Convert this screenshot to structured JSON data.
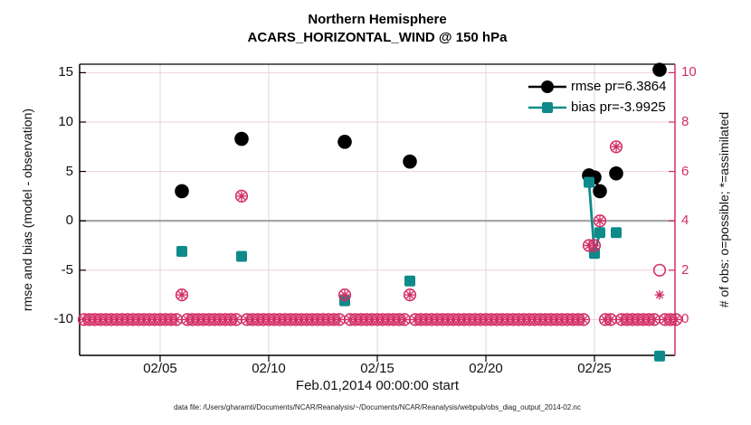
{
  "figure": {
    "title_line1": "Northern Hemisphere",
    "title_line2": "ACARS_HORIZONTAL_WIND @ 150 hPa",
    "footer": "data file: /Users/gharamti/Documents/NCAR/Reanalysis/~/Documents/NCAR/Reanalysis/webpub/obs_diag_output_2014-02.nc"
  },
  "legend": [
    {
      "label": "rmse pr=6.3864",
      "series": "rmse"
    },
    {
      "label": "bias pr=-3.9925",
      "series": "bias"
    }
  ],
  "colors": {
    "rmse": "#000000",
    "bias": "#0e8a8a",
    "obs": "#d32e66",
    "zero_line": "#a3a3a3",
    "h_grid": "#f3cdd9",
    "v_grid": "#d8d8d8",
    "frame": "#000000"
  },
  "chart_data": {
    "type": "line",
    "title": "Northern Hemisphere — ACARS_HORIZONTAL_WIND @ 150 hPa",
    "xlabel": "Feb.01,2014 00:00:00 start",
    "x_axis": {
      "tick_days": [
        5,
        10,
        15,
        20,
        25
      ],
      "tick_labels": [
        "02/05",
        "02/10",
        "02/15",
        "02/20",
        "02/25"
      ],
      "range_days": [
        1.25,
        28.75
      ]
    },
    "y_left": {
      "label": "rmse and bias (model - observation)",
      "ticks": [
        15,
        10,
        5,
        0,
        -5,
        -10
      ],
      "tick_labels": [
        "15",
        "10",
        "5",
        "0",
        "-5",
        "-10"
      ],
      "range": [
        -14,
        15.9
      ]
    },
    "y_right": {
      "label": "# of obs: o=possible; *=assimilated",
      "ticks": [
        10,
        8,
        6,
        4,
        2,
        0
      ],
      "tick_labels": [
        "10",
        "8",
        "6",
        "4",
        "2",
        "0"
      ],
      "range": [
        -1.6,
        10.3
      ]
    },
    "series": [
      {
        "name": "rmse pr=6.3864",
        "marker": "circle",
        "points": [
          {
            "day": 6.0,
            "value": 3.0
          },
          {
            "day": 8.75,
            "value": 8.3
          },
          {
            "day": 13.5,
            "value": 8.0
          },
          {
            "day": 16.5,
            "value": 6.0
          },
          {
            "day": 24.75,
            "value": 4.6
          },
          {
            "day": 25.0,
            "value": 4.4
          },
          {
            "day": 25.25,
            "value": 3.0
          },
          {
            "day": 26.0,
            "value": 4.8
          },
          {
            "day": 28.0,
            "value": 15.3
          }
        ]
      },
      {
        "name": "bias pr=-3.9925",
        "marker": "square",
        "points": [
          {
            "day": 6.0,
            "value": -3.1
          },
          {
            "day": 8.75,
            "value": -3.6
          },
          {
            "day": 13.5,
            "value": -8.1
          },
          {
            "day": 16.5,
            "value": -6.1
          },
          {
            "day": 24.75,
            "value": 3.9
          },
          {
            "day": 25.0,
            "value": -3.3
          },
          {
            "day": 25.25,
            "value": -1.2
          },
          {
            "day": 26.0,
            "value": -1.2
          },
          {
            "day": 28.0,
            "value": -13.7
          }
        ]
      }
    ],
    "obs_counts": {
      "axis": "right",
      "nonzero": [
        {
          "day": 6.0,
          "possible": 1,
          "assimilated": 1
        },
        {
          "day": 8.75,
          "possible": 5,
          "assimilated": 5
        },
        {
          "day": 13.5,
          "possible": 1,
          "assimilated": 1
        },
        {
          "day": 16.5,
          "possible": 1,
          "assimilated": 1
        },
        {
          "day": 24.75,
          "possible": 3,
          "assimilated": 3
        },
        {
          "day": 25.0,
          "possible": 3,
          "assimilated": 3
        },
        {
          "day": 25.25,
          "possible": 4,
          "assimilated": 4
        },
        {
          "day": 26.0,
          "possible": 7,
          "assimilated": 7
        },
        {
          "day": 28.0,
          "possible": 2,
          "assimilated": 1
        }
      ],
      "zero_row": {
        "start_day": 1.5,
        "end_day": 28.75,
        "step": 0.25,
        "skip_days": [
          6.0,
          8.75,
          13.5,
          16.5,
          24.75,
          25.0,
          25.25,
          26.0,
          28.0
        ]
      }
    }
  }
}
